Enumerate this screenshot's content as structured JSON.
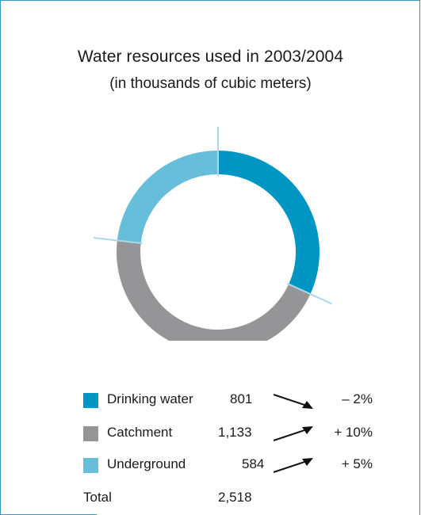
{
  "chart_data": {
    "type": "pie",
    "title": "Water resources used in 2003/2004",
    "subtitle": "(in thousands of cubic meters)",
    "series": [
      {
        "name": "Drinking water",
        "value": 801,
        "value_label": "801",
        "change": "– 2%",
        "trend": "down",
        "color": "#0096c3"
      },
      {
        "name": "Catchment",
        "value": 1133,
        "value_label": "1,133",
        "change": "+ 10%",
        "trend": "up",
        "color": "#959598"
      },
      {
        "name": "Underground",
        "value": 584,
        "value_label": "584",
        "change": "+ 5%",
        "trend": "up",
        "color": "#66bedb"
      }
    ],
    "total_label": "Total",
    "total_value": "2,518"
  }
}
